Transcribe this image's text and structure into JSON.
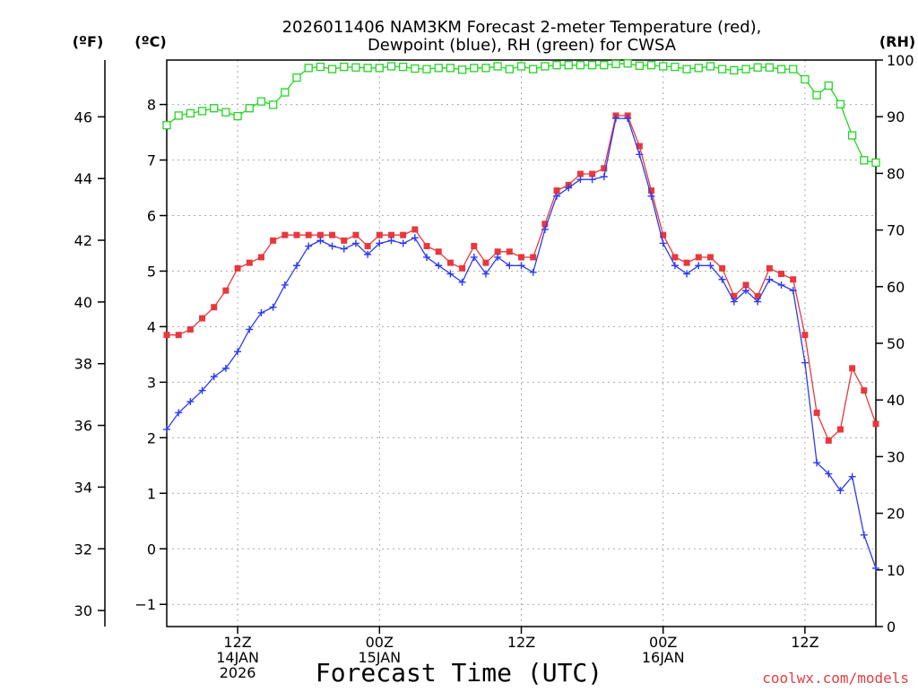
{
  "chart_data": {
    "type": "line",
    "title_line1": "2026011406 NAM3KM Forecast 2-meter Temperature (red),",
    "title_line2": "Dewpoint (blue), RH (green) for CWSA",
    "xlabel": "Forecast Time (UTC)",
    "credit": "coolwx.com/models",
    "axis_units": {
      "fahrenheit": "(ºF)",
      "celsius": "(ºC)",
      "rh": "(RH)"
    },
    "forecast_hours": [
      0,
      1,
      2,
      3,
      4,
      5,
      6,
      7,
      8,
      9,
      10,
      11,
      12,
      13,
      14,
      15,
      16,
      17,
      18,
      19,
      20,
      21,
      22,
      23,
      24,
      25,
      26,
      27,
      28,
      29,
      30,
      31,
      32,
      33,
      34,
      35,
      36,
      37,
      38,
      39,
      40,
      41,
      42,
      43,
      44,
      45,
      46,
      47,
      48,
      49,
      50,
      51,
      52,
      53,
      54,
      55,
      56,
      57,
      58,
      59,
      60
    ],
    "x_range_hours": [
      0,
      60
    ],
    "x_ticks": [
      {
        "hour": 6,
        "lines": [
          "12Z",
          "14JAN",
          "2026"
        ]
      },
      {
        "hour": 18,
        "lines": [
          "00Z",
          "15JAN"
        ]
      },
      {
        "hour": 30,
        "lines": [
          "12Z"
        ]
      },
      {
        "hour": 42,
        "lines": [
          "00Z",
          "16JAN"
        ]
      },
      {
        "hour": 54,
        "lines": [
          "12Z"
        ]
      }
    ],
    "y_celsius": {
      "range": [
        -1.4,
        8.8
      ],
      "ticks": [
        "-1",
        "0",
        "1",
        "2",
        "3",
        "4",
        "5",
        "6",
        "7",
        "8"
      ]
    },
    "y_fahrenheit": {
      "ticks": [
        "30",
        "32",
        "34",
        "36",
        "38",
        "40",
        "42",
        "44",
        "46"
      ]
    },
    "y_rh": {
      "range": [
        0,
        100
      ],
      "ticks": [
        "0",
        "10",
        "20",
        "30",
        "40",
        "50",
        "60",
        "70",
        "80",
        "90",
        "100"
      ]
    },
    "series": [
      {
        "name": "Temperature",
        "units": "C",
        "color": "#e8383d",
        "marker": "filled-square",
        "values": [
          3.85,
          3.85,
          3.95,
          4.15,
          4.35,
          4.65,
          5.05,
          5.15,
          5.25,
          5.55,
          5.65,
          5.65,
          5.65,
          5.65,
          5.65,
          5.55,
          5.65,
          5.45,
          5.65,
          5.65,
          5.65,
          5.75,
          5.45,
          5.35,
          5.15,
          5.05,
          5.45,
          5.15,
          5.35,
          5.35,
          5.25,
          5.25,
          5.85,
          6.45,
          6.55,
          6.75,
          6.75,
          6.85,
          7.8,
          7.8,
          7.25,
          6.45,
          5.65,
          5.25,
          5.15,
          5.25,
          5.25,
          5.05,
          4.55,
          4.75,
          4.55,
          5.05,
          4.95,
          4.85,
          3.85,
          2.45,
          1.95,
          2.15,
          3.25,
          2.85,
          2.25
        ]
      },
      {
        "name": "Dewpoint",
        "units": "C",
        "color": "#2d3cf0",
        "marker": "plus",
        "values": [
          2.15,
          2.45,
          2.65,
          2.85,
          3.1,
          3.25,
          3.55,
          3.95,
          4.25,
          4.35,
          4.75,
          5.1,
          5.45,
          5.55,
          5.45,
          5.4,
          5.5,
          5.3,
          5.5,
          5.55,
          5.5,
          5.6,
          5.25,
          5.1,
          4.95,
          4.8,
          5.25,
          4.95,
          5.25,
          5.1,
          5.1,
          4.98,
          5.75,
          6.35,
          6.5,
          6.65,
          6.65,
          6.7,
          7.75,
          7.75,
          7.1,
          6.35,
          5.5,
          5.1,
          4.95,
          5.1,
          5.1,
          4.85,
          4.45,
          4.65,
          4.45,
          4.85,
          4.75,
          4.65,
          3.35,
          1.55,
          1.35,
          1.05,
          1.3,
          0.25,
          -0.35
        ]
      },
      {
        "name": "RH",
        "units": "%",
        "color": "#22d622",
        "marker": "open-square",
        "values": [
          88.5,
          90.2,
          90.6,
          91,
          91.5,
          90.8,
          90.1,
          91.5,
          92.7,
          92.1,
          94.3,
          96.9,
          98.6,
          98.8,
          98.4,
          98.8,
          98.7,
          98.6,
          98.6,
          98.9,
          98.8,
          98.5,
          98.4,
          98.6,
          98.6,
          98.3,
          98.6,
          98.6,
          98.9,
          98.4,
          98.9,
          98.4,
          98.9,
          99.1,
          99.1,
          99.1,
          99.1,
          99.1,
          99.3,
          99.4,
          99,
          99.1,
          98.9,
          98.8,
          98.4,
          98.6,
          98.9,
          98.4,
          98.2,
          98.4,
          98.7,
          98.7,
          98.4,
          98.4,
          96.6,
          93.8,
          95.5,
          92.2,
          86.7,
          82.3,
          81.9
        ]
      }
    ]
  }
}
